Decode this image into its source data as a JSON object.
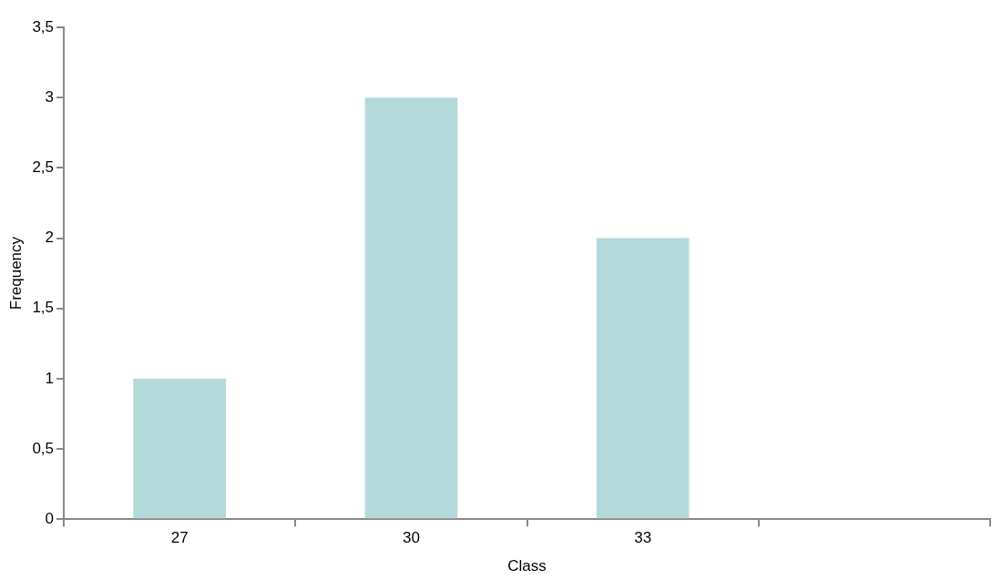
{
  "chart_data": {
    "type": "bar",
    "xlabel": "Class",
    "ylabel": "Frequency",
    "categories": [
      "27",
      "30",
      "33",
      null
    ],
    "series": [
      {
        "color": "#b4d9db",
        "values": [
          1,
          3,
          2,
          null
        ]
      }
    ],
    "ylim": [
      0,
      3.5
    ],
    "yticks": [
      0,
      {
        "value": 0.5,
        "label": "0,5"
      },
      1,
      {
        "value": 1.5,
        "label": "1,5"
      },
      2,
      {
        "value": 2.5,
        "label": "2,5"
      },
      3,
      {
        "value": 3.5,
        "label": "3,5"
      }
    ],
    "grid": false,
    "legend": false
  }
}
